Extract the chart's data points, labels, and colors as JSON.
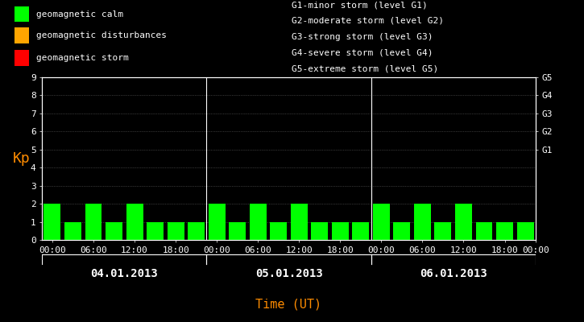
{
  "bg_color": "#000000",
  "plot_bg_color": "#000000",
  "bar_color_calm": "#00ff00",
  "bar_color_disturbance": "#ffa500",
  "bar_color_storm": "#ff0000",
  "text_color": "#ffffff",
  "kp_label_color": "#ff8c00",
  "time_label_color": "#ff8c00",
  "ylabel": "Kp",
  "xlabel": "Time (UT)",
  "ylim": [
    0,
    9
  ],
  "yticks": [
    0,
    1,
    2,
    3,
    4,
    5,
    6,
    7,
    8,
    9
  ],
  "days": [
    "04.01.2013",
    "05.01.2013",
    "06.01.2013"
  ],
  "kp_values_day1": [
    2,
    1,
    2,
    1,
    2,
    1,
    1,
    1
  ],
  "kp_values_day2": [
    2,
    1,
    2,
    1,
    2,
    1,
    1,
    1
  ],
  "kp_values_day3": [
    2,
    1,
    2,
    1,
    2,
    1,
    1,
    1
  ],
  "grid_color": "#ffffff",
  "legend_calm": "geomagnetic calm",
  "legend_disturbance": "geomagnetic disturbances",
  "legend_storm": "geomagnetic storm",
  "g_labels": [
    "G5",
    "G4",
    "G3",
    "G2",
    "G1"
  ],
  "g_levels": [
    9,
    8,
    7,
    6,
    5
  ],
  "right_labels": [
    "G1-minor storm (level G1)",
    "G2-moderate storm (level G2)",
    "G3-strong storm (level G3)",
    "G4-severe storm (level G4)",
    "G5-extreme storm (level G5)"
  ],
  "font_family": "monospace",
  "font_size": 8,
  "bar_width": 0.82
}
